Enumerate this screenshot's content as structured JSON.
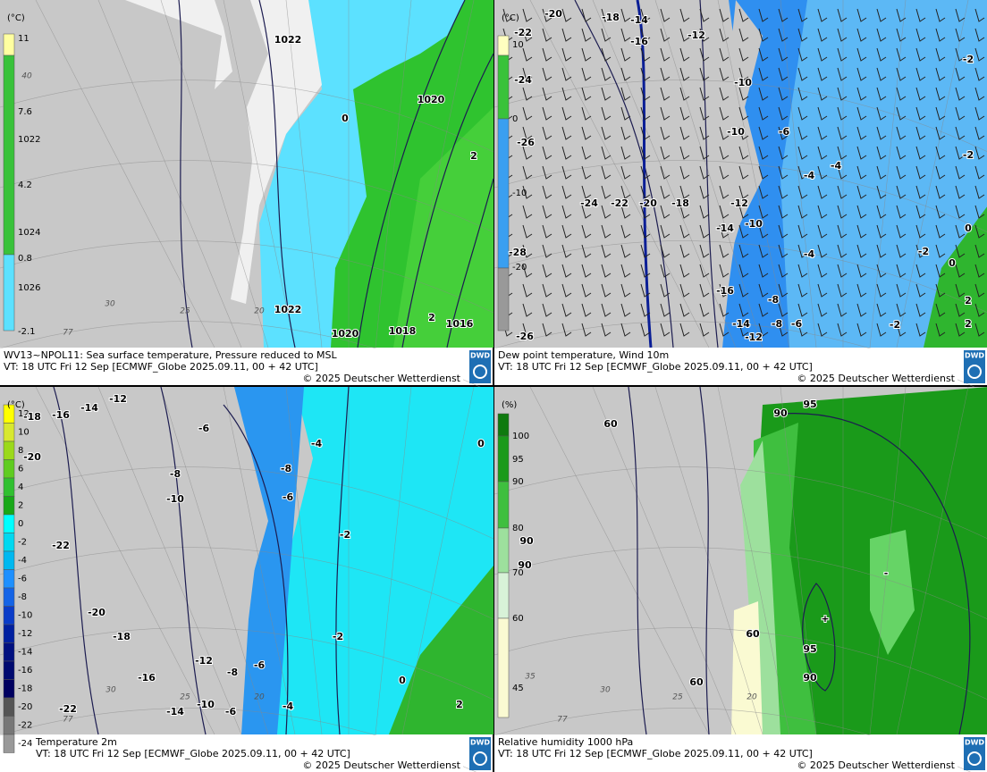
{
  "panels": [
    {
      "caption": {
        "title": "WV13~NPOL11: Sea surface temperature,  Pressure reduced to MSL",
        "valid_time": "VT: 18 UTC Fri  12 Sep [ECMWF_Globe 2025.09.11,  00 + 42 UTC]",
        "copyright": "© 2025 Deutscher Wetterdienst"
      },
      "logo": "DWD",
      "legend": {
        "unit": "(°C)",
        "labels": [
          "11",
          "7.6",
          "1022",
          "4.2",
          "1024",
          "0.8",
          "1026",
          "-2.1"
        ]
      },
      "labels": [
        "1022",
        "1020",
        "0",
        "2",
        "1022",
        "2",
        "1016",
        "1020",
        "1018"
      ],
      "grid_labels": [
        "40",
        "30",
        "25",
        "20",
        "77"
      ]
    },
    {
      "caption": {
        "title": "Dew point temperature, Wind 10m",
        "valid_time": "VT: 18 UTC Fri  12 Sep [ECMWF_Globe 2025.09.11,  00 + 42 UTC]",
        "copyright": "© 2025 Deutscher Wetterdienst"
      },
      "logo": "DWD",
      "legend": {
        "unit": "(°C)",
        "labels": [
          "10",
          "0",
          "-10",
          "-20"
        ]
      },
      "labels": [
        "-20",
        "-18",
        "-14",
        "-22",
        "-16",
        "-12",
        "-24",
        "-26",
        "-24",
        "-22",
        "-20",
        "-18",
        "-12",
        "-10",
        "-10",
        "-6",
        "-14",
        "-10",
        "-4",
        "-4",
        "-2",
        "-2",
        "-2",
        "0",
        "0",
        "2",
        "2",
        "-28",
        "-26",
        "-16",
        "-12",
        "-14",
        "-8",
        "-8",
        "-6",
        "-4",
        "-2"
      ],
      "grid_labels": []
    },
    {
      "caption": {
        "title": "Temperature 2m",
        "valid_time": "VT: 18 UTC Fri  12 Sep [ECMWF_Globe 2025.09.11,  00 + 42 UTC]",
        "copyright": "© 2025 Deutscher Wetterdienst"
      },
      "logo": "DWD",
      "legend": {
        "unit": "(°C)",
        "labels": [
          "12",
          "10",
          "8",
          "6",
          "4",
          "2",
          "0",
          "-2",
          "-4",
          "-6",
          "-8",
          "-10",
          "-12",
          "-14",
          "-16",
          "-18",
          "-20",
          "-22",
          "-24"
        ]
      },
      "labels": [
        "-18",
        "-16",
        "-14",
        "-12",
        "-20",
        "-22",
        "-20",
        "-18",
        "-16",
        "-14",
        "-10",
        "-8",
        "-6",
        "-12",
        "-10",
        "-8",
        "-6",
        "-6",
        "-4",
        "-8",
        "-6",
        "-4",
        "-2",
        "-2",
        "0",
        "0",
        "2",
        "-22"
      ],
      "grid_labels": [
        "30",
        "25",
        "20",
        "77"
      ]
    },
    {
      "caption": {
        "title": "Relative humidity 1000 hPa",
        "valid_time": "VT: 18 UTC Fri  12 Sep [ECMWF_Globe 2025.09.11,  00 + 42 UTC]",
        "copyright": "© 2025 Deutscher Wetterdienst"
      },
      "logo": "DWD",
      "legend": {
        "unit": "(%)",
        "labels": [
          "100",
          "95",
          "90",
          "80",
          "70",
          "60",
          "45"
        ]
      },
      "labels": [
        "60",
        "90",
        "95",
        "90",
        "90",
        "60",
        "95",
        "90",
        "60",
        "-",
        "+"
      ],
      "grid_labels": [
        "30",
        "25",
        "20",
        "35",
        "77"
      ]
    }
  ]
}
